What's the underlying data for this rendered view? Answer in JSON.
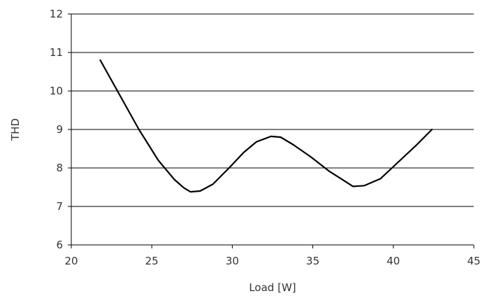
{
  "chart_data": {
    "type": "line",
    "title": "",
    "xlabel": "Load [W]",
    "ylabel": "THD",
    "xlim": [
      20,
      45
    ],
    "ylim": [
      6,
      12
    ],
    "xticks": [
      20,
      25,
      30,
      35,
      40,
      45
    ],
    "yticks": [
      6,
      7,
      8,
      9,
      10,
      11,
      12
    ],
    "grid": "horizontal",
    "legend": "none",
    "series": [
      {
        "color": "#000000",
        "x": [
          21.8,
          23.0,
          24.2,
          25.4,
          26.4,
          27.0,
          27.4,
          28.0,
          28.8,
          29.8,
          30.7,
          31.5,
          32.4,
          33.0,
          33.8,
          34.9,
          36.0,
          37.5,
          38.2,
          39.2,
          40.3,
          41.4,
          42.4
        ],
        "y": [
          10.8,
          9.9,
          9.0,
          8.2,
          7.7,
          7.48,
          7.38,
          7.4,
          7.58,
          8.0,
          8.4,
          8.68,
          8.82,
          8.8,
          8.6,
          8.28,
          7.92,
          7.52,
          7.54,
          7.72,
          8.15,
          8.58,
          9.0
        ]
      }
    ]
  }
}
